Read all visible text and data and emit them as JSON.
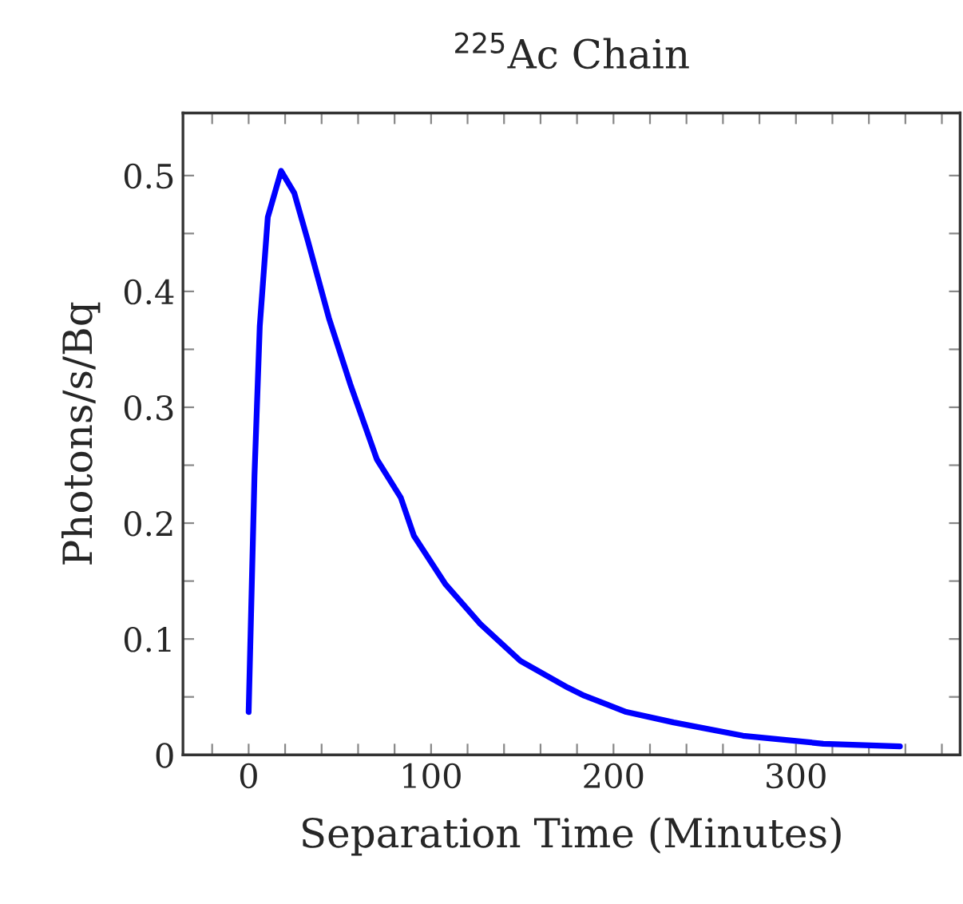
{
  "chart_data": {
    "type": "line",
    "title": "$^{225}$Ac Chain",
    "xlabel": "Separation Time (Minutes)",
    "ylabel": "Photons/s/Bq",
    "xlim": [
      -36,
      390
    ],
    "ylim": [
      0,
      0.554
    ],
    "xticks": [
      {
        "value": -20,
        "label": null
      },
      0,
      {
        "value": 20,
        "label": null
      },
      {
        "value": 40,
        "label": null
      },
      {
        "value": 60,
        "label": null
      },
      {
        "value": 80,
        "label": null
      },
      100,
      {
        "value": 120,
        "label": null
      },
      {
        "value": 140,
        "label": null
      },
      {
        "value": 160,
        "label": null
      },
      {
        "value": 180,
        "label": null
      },
      200,
      {
        "value": 220,
        "label": null
      },
      {
        "value": 240,
        "label": null
      },
      {
        "value": 260,
        "label": null
      },
      {
        "value": 280,
        "label": null
      },
      300,
      {
        "value": 320,
        "label": null
      },
      {
        "value": 340,
        "label": null
      },
      {
        "value": 360,
        "label": null
      },
      {
        "value": 380,
        "label": null
      }
    ],
    "yticks": [
      0,
      {
        "value": 0.05,
        "label": null
      },
      0.1,
      {
        "value": 0.15,
        "label": null
      },
      0.2,
      {
        "value": 0.25,
        "label": null
      },
      0.3,
      {
        "value": 0.35,
        "label": null
      },
      0.4,
      {
        "value": 0.45,
        "label": null
      },
      0.5
    ],
    "grid": false,
    "legend": false,
    "marker": "none",
    "line_style": "solid",
    "series": [
      {
        "color": "#0000ff",
        "x": [
          0,
          3.2,
          6.1,
          10.5,
          17.8,
          25,
          32.4,
          44,
          55.7,
          70.3,
          83.4,
          90.6,
          108,
          127,
          149,
          175,
          184,
          207,
          233,
          271,
          315,
          357
        ],
        "values": [
          0.037,
          0.241,
          0.37,
          0.464,
          0.504,
          0.485,
          0.444,
          0.377,
          0.32,
          0.255,
          0.222,
          0.189,
          0.147,
          0.113,
          0.081,
          0.058,
          0.051,
          0.037,
          0.028,
          0.0165,
          0.0096,
          0.0073
        ]
      }
    ]
  }
}
